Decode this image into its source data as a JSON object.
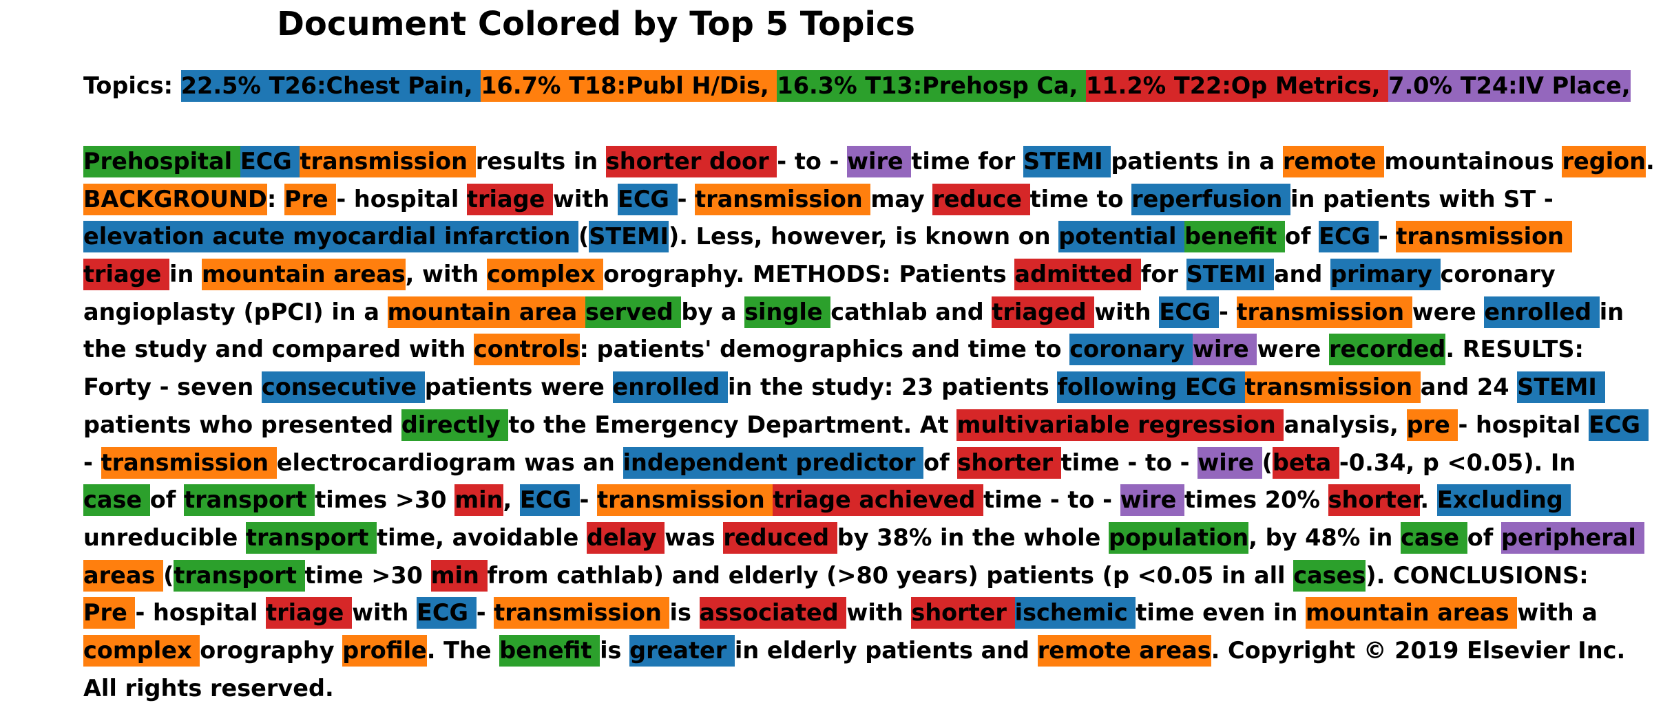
{
  "title": "Document Colored by Top 5 Topics",
  "colors": {
    "blue": "#1f77b4",
    "orange": "#ff7f0e",
    "green": "#2ca02c",
    "red": "#d62728",
    "purple": "#9467bd"
  },
  "topics_label": "Topics: ",
  "topics": [
    {
      "text": "22.5% T26:Chest Pain, ",
      "color": "blue"
    },
    {
      "text": "16.7% T18:Publ H/Dis, ",
      "color": "orange"
    },
    {
      "text": "16.3% T13:Prehosp Ca, ",
      "color": "green"
    },
    {
      "text": "11.2% T22:Op Metrics, ",
      "color": "red"
    },
    {
      "text": "7.0% T24:IV Place, ",
      "color": "purple"
    }
  ],
  "document_lines": [
    [
      {
        "t": "Prehospital ",
        "c": "green"
      },
      {
        "t": "ECG ",
        "c": "blue"
      },
      {
        "t": "transmission ",
        "c": "orange"
      },
      {
        "t": "results in "
      },
      {
        "t": "shorter door ",
        "c": "red"
      },
      {
        "t": "- to - "
      },
      {
        "t": "wire ",
        "c": "purple"
      },
      {
        "t": "time for "
      },
      {
        "t": "STEMI ",
        "c": "blue"
      },
      {
        "t": "patients in a "
      },
      {
        "t": "remote ",
        "c": "orange"
      },
      {
        "t": "mountainous "
      },
      {
        "t": "region",
        "c": "orange"
      },
      {
        "t": "."
      }
    ],
    [
      {
        "t": "BACKGROUND",
        "c": "orange"
      },
      {
        "t": ": "
      },
      {
        "t": "Pre ",
        "c": "orange"
      },
      {
        "t": "- hospital "
      },
      {
        "t": "triage ",
        "c": "red"
      },
      {
        "t": "with "
      },
      {
        "t": "ECG ",
        "c": "blue"
      },
      {
        "t": "- "
      },
      {
        "t": "transmission ",
        "c": "orange"
      },
      {
        "t": "may "
      },
      {
        "t": "reduce ",
        "c": "red"
      },
      {
        "t": "time to "
      },
      {
        "t": "reperfusion ",
        "c": "blue"
      },
      {
        "t": "in patients with ST -"
      }
    ],
    [
      {
        "t": "elevation acute myocardial infarction ",
        "c": "blue"
      },
      {
        "t": "("
      },
      {
        "t": "STEMI",
        "c": "blue"
      },
      {
        "t": "). Less, however, is known on "
      },
      {
        "t": "potential ",
        "c": "blue"
      },
      {
        "t": "benefit ",
        "c": "green"
      },
      {
        "t": "of "
      },
      {
        "t": "ECG ",
        "c": "blue"
      },
      {
        "t": "- "
      },
      {
        "t": "transmission ",
        "c": "orange"
      }
    ],
    [
      {
        "t": "triage ",
        "c": "red"
      },
      {
        "t": "in "
      },
      {
        "t": "mountain areas",
        "c": "orange"
      },
      {
        "t": ", with "
      },
      {
        "t": "complex ",
        "c": "orange"
      },
      {
        "t": "orography. METHODS: Patients "
      },
      {
        "t": "admitted ",
        "c": "red"
      },
      {
        "t": "for "
      },
      {
        "t": "STEMI ",
        "c": "blue"
      },
      {
        "t": "and "
      },
      {
        "t": "primary ",
        "c": "blue"
      },
      {
        "t": "coronary"
      }
    ],
    [
      {
        "t": "angioplasty (pPCI) in a "
      },
      {
        "t": "mountain area ",
        "c": "orange"
      },
      {
        "t": "served ",
        "c": "green"
      },
      {
        "t": "by a "
      },
      {
        "t": "single ",
        "c": "green"
      },
      {
        "t": "cathlab and "
      },
      {
        "t": "triaged ",
        "c": "red"
      },
      {
        "t": "with "
      },
      {
        "t": "ECG ",
        "c": "blue"
      },
      {
        "t": "- "
      },
      {
        "t": "transmission ",
        "c": "orange"
      },
      {
        "t": "were "
      },
      {
        "t": "enrolled ",
        "c": "blue"
      },
      {
        "t": "in"
      }
    ],
    [
      {
        "t": "the study and compared with "
      },
      {
        "t": "controls",
        "c": "orange"
      },
      {
        "t": ": patients' demographics and time to "
      },
      {
        "t": "coronary ",
        "c": "blue"
      },
      {
        "t": "wire ",
        "c": "purple"
      },
      {
        "t": "were "
      },
      {
        "t": "recorded",
        "c": "green"
      },
      {
        "t": ". RESULTS:"
      }
    ],
    [
      {
        "t": "Forty - seven "
      },
      {
        "t": "consecutive ",
        "c": "blue"
      },
      {
        "t": "patients were "
      },
      {
        "t": "enrolled ",
        "c": "blue"
      },
      {
        "t": "in the study: 23 patients "
      },
      {
        "t": "following ECG ",
        "c": "blue"
      },
      {
        "t": "transmission ",
        "c": "orange"
      },
      {
        "t": "and 24 "
      },
      {
        "t": "STEMI ",
        "c": "blue"
      }
    ],
    [
      {
        "t": "patients who presented "
      },
      {
        "t": "directly ",
        "c": "green"
      },
      {
        "t": "to the Emergency Department. At "
      },
      {
        "t": "multivariable regression ",
        "c": "red"
      },
      {
        "t": "analysis, "
      },
      {
        "t": "pre ",
        "c": "orange"
      },
      {
        "t": "- hospital "
      },
      {
        "t": "ECG ",
        "c": "blue"
      }
    ],
    [
      {
        "t": "- "
      },
      {
        "t": "transmission ",
        "c": "orange"
      },
      {
        "t": "electrocardiogram was an "
      },
      {
        "t": "independent predictor ",
        "c": "blue"
      },
      {
        "t": "of "
      },
      {
        "t": "shorter ",
        "c": "red"
      },
      {
        "t": "time - to - "
      },
      {
        "t": "wire ",
        "c": "purple"
      },
      {
        "t": "("
      },
      {
        "t": "beta ",
        "c": "red"
      },
      {
        "t": "-0.34, p <0.05). In"
      }
    ],
    [
      {
        "t": "case ",
        "c": "green"
      },
      {
        "t": "of "
      },
      {
        "t": "transport ",
        "c": "green"
      },
      {
        "t": "times >30 "
      },
      {
        "t": "min",
        "c": "red"
      },
      {
        "t": ", "
      },
      {
        "t": "ECG ",
        "c": "blue"
      },
      {
        "t": "- "
      },
      {
        "t": "transmission ",
        "c": "orange"
      },
      {
        "t": "triage achieved ",
        "c": "red"
      },
      {
        "t": "time - to - "
      },
      {
        "t": "wire ",
        "c": "purple"
      },
      {
        "t": "times 20% "
      },
      {
        "t": "shorter",
        "c": "red"
      },
      {
        "t": ". "
      },
      {
        "t": "Excluding ",
        "c": "blue"
      }
    ],
    [
      {
        "t": "unreducible "
      },
      {
        "t": "transport ",
        "c": "green"
      },
      {
        "t": "time, avoidable "
      },
      {
        "t": "delay ",
        "c": "red"
      },
      {
        "t": "was "
      },
      {
        "t": "reduced ",
        "c": "red"
      },
      {
        "t": "by 38% in the whole "
      },
      {
        "t": "population",
        "c": "green"
      },
      {
        "t": ", by 48% in "
      },
      {
        "t": "case ",
        "c": "green"
      },
      {
        "t": "of "
      },
      {
        "t": "peripheral ",
        "c": "purple"
      }
    ],
    [
      {
        "t": "areas ",
        "c": "orange"
      },
      {
        "t": "("
      },
      {
        "t": "transport ",
        "c": "green"
      },
      {
        "t": "time >30 "
      },
      {
        "t": "min ",
        "c": "red"
      },
      {
        "t": "from cathlab) and elderly (>80 years) patients (p <0.05 in all "
      },
      {
        "t": "cases",
        "c": "green"
      },
      {
        "t": "). CONCLUSIONS:"
      }
    ],
    [
      {
        "t": "Pre ",
        "c": "orange"
      },
      {
        "t": "- hospital "
      },
      {
        "t": "triage ",
        "c": "red"
      },
      {
        "t": "with "
      },
      {
        "t": "ECG ",
        "c": "blue"
      },
      {
        "t": "- "
      },
      {
        "t": "transmission ",
        "c": "orange"
      },
      {
        "t": "is "
      },
      {
        "t": "associated ",
        "c": "red"
      },
      {
        "t": "with "
      },
      {
        "t": "shorter ",
        "c": "red"
      },
      {
        "t": "ischemic ",
        "c": "blue"
      },
      {
        "t": "time even in "
      },
      {
        "t": "mountain areas ",
        "c": "orange"
      },
      {
        "t": "with a"
      }
    ],
    [
      {
        "t": "complex ",
        "c": "orange"
      },
      {
        "t": "orography "
      },
      {
        "t": "profile",
        "c": "orange"
      },
      {
        "t": ". The "
      },
      {
        "t": "benefit ",
        "c": "green"
      },
      {
        "t": "is "
      },
      {
        "t": "greater ",
        "c": "blue"
      },
      {
        "t": "in elderly patients and "
      },
      {
        "t": "remote areas",
        "c": "orange"
      },
      {
        "t": ". Copyright © 2019 Elsevier Inc."
      }
    ],
    [
      {
        "t": "All rights reserved."
      }
    ]
  ]
}
